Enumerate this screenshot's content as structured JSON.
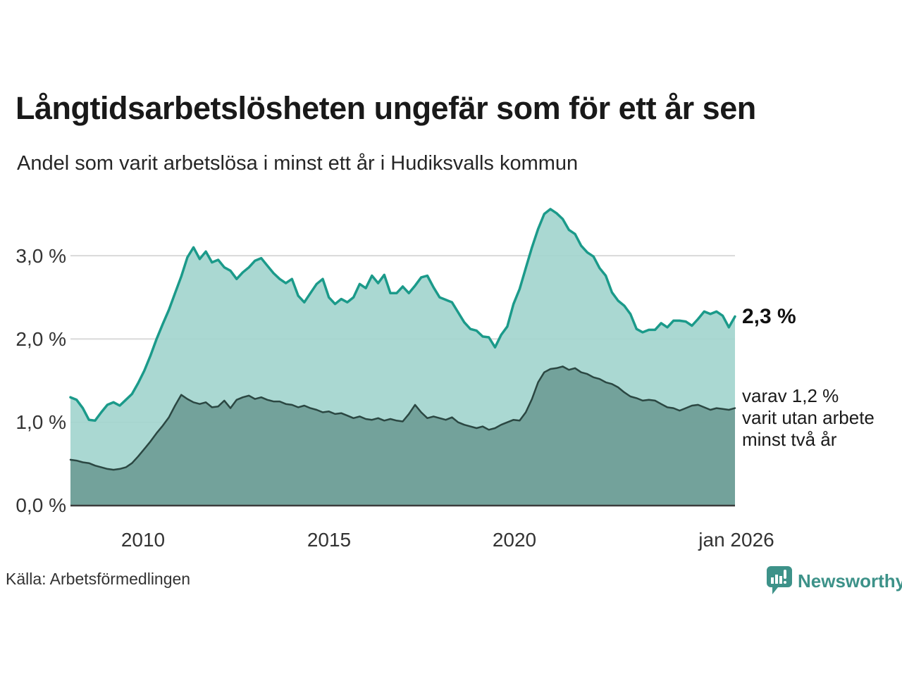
{
  "header": {
    "title": "Långtidsarbetslösheten ungefär som för ett år sen",
    "subtitle": "Andel som varit arbetslösa i minst ett år i Hudiksvalls kommun"
  },
  "annotations": {
    "latest_total": "2,3 %",
    "secondary_line1": "varav 1,2 %",
    "secondary_line2": "varit utan arbete",
    "secondary_line3": "minst två år"
  },
  "source": {
    "label": "Källa: Arbetsförmedlingen"
  },
  "brand": {
    "name": "Newsworthy",
    "icon": "newsworthy-chart-bubble-logo",
    "color": "#3d9289"
  },
  "colors": {
    "accent_teal": "#1b9a8a",
    "light_fill": "#a3d5ce",
    "dark_stroke": "#2b4742",
    "dark_fill": "#6f9d96",
    "gridline": "#d9d9d9",
    "axis_line": "#3c3c3c",
    "text": "#1a1a1a"
  },
  "chart_data": {
    "type": "area",
    "title": "Långtidsarbetslösheten ungefär som för ett år sen",
    "subtitle": "Andel som varit arbetslösa i minst ett år i Hudiksvalls kommun",
    "x_unit": "time (monthly)",
    "x_start": 2008.08,
    "x_end": 2026.0,
    "x_step_years": 0.1667,
    "ylim": [
      0,
      3.7
    ],
    "grid": "horizontal",
    "y_ticks": [
      {
        "value": 3.0,
        "label": "3,0 %"
      },
      {
        "value": 2.0,
        "label": "2,0 %"
      },
      {
        "value": 1.0,
        "label": "1,0 %"
      },
      {
        "value": 0.0,
        "label": "0,0 %"
      }
    ],
    "x_ticks": [
      {
        "value": 2010,
        "label": "2010"
      },
      {
        "value": 2015,
        "label": "2015"
      },
      {
        "value": 2020,
        "label": "2020"
      },
      {
        "value": 2026,
        "label": "jan 2026"
      }
    ],
    "series": [
      {
        "name": "Andel arbetslösa minst ett år",
        "latest_value_pct": 2.3,
        "latest_label": "2,3 %",
        "stroke": "#1b9a8a",
        "stroke_width": 3.5,
        "fill": "#a3d5ce",
        "values": [
          1.3,
          1.27,
          1.17,
          1.03,
          1.02,
          1.12,
          1.21,
          1.24,
          1.2,
          1.27,
          1.34,
          1.47,
          1.62,
          1.8,
          2.0,
          2.18,
          2.35,
          2.55,
          2.75,
          2.98,
          3.1,
          2.96,
          3.05,
          2.92,
          2.95,
          2.86,
          2.82,
          2.72,
          2.8,
          2.86,
          2.94,
          2.97,
          2.88,
          2.79,
          2.72,
          2.67,
          2.72,
          2.52,
          2.44,
          2.55,
          2.66,
          2.72,
          2.5,
          2.42,
          2.48,
          2.44,
          2.5,
          2.66,
          2.61,
          2.76,
          2.67,
          2.77,
          2.55,
          2.55,
          2.63,
          2.55,
          2.64,
          2.74,
          2.76,
          2.62,
          2.5,
          2.47,
          2.44,
          2.32,
          2.2,
          2.12,
          2.1,
          2.03,
          2.02,
          1.9,
          2.05,
          2.15,
          2.42,
          2.6,
          2.85,
          3.1,
          3.32,
          3.5,
          3.56,
          3.51,
          3.44,
          3.31,
          3.26,
          3.12,
          3.04,
          2.99,
          2.85,
          2.76,
          2.56,
          2.46,
          2.4,
          2.3,
          2.12,
          2.08,
          2.11,
          2.11,
          2.19,
          2.14,
          2.22,
          2.22,
          2.21,
          2.16,
          2.24,
          2.33,
          2.3,
          2.33,
          2.28,
          2.14,
          2.27
        ]
      },
      {
        "name": "Andel utan arbete minst två år",
        "latest_value_pct": 1.2,
        "latest_label": "varav 1,2 % varit utan arbete minst två år",
        "stroke": "#2b4742",
        "stroke_width": 2.5,
        "fill": "#6f9d96",
        "values": [
          0.55,
          0.54,
          0.52,
          0.51,
          0.48,
          0.46,
          0.44,
          0.43,
          0.44,
          0.46,
          0.51,
          0.59,
          0.68,
          0.77,
          0.87,
          0.96,
          1.06,
          1.2,
          1.33,
          1.28,
          1.24,
          1.22,
          1.24,
          1.18,
          1.19,
          1.26,
          1.17,
          1.27,
          1.3,
          1.32,
          1.28,
          1.3,
          1.27,
          1.25,
          1.25,
          1.22,
          1.21,
          1.18,
          1.2,
          1.17,
          1.15,
          1.12,
          1.13,
          1.1,
          1.11,
          1.08,
          1.05,
          1.07,
          1.04,
          1.03,
          1.05,
          1.02,
          1.04,
          1.02,
          1.01,
          1.1,
          1.21,
          1.12,
          1.05,
          1.07,
          1.05,
          1.03,
          1.06,
          1.0,
          0.97,
          0.95,
          0.93,
          0.95,
          0.91,
          0.93,
          0.97,
          1.0,
          1.03,
          1.02,
          1.12,
          1.28,
          1.48,
          1.6,
          1.64,
          1.65,
          1.67,
          1.63,
          1.65,
          1.6,
          1.58,
          1.54,
          1.52,
          1.48,
          1.46,
          1.42,
          1.36,
          1.31,
          1.29,
          1.26,
          1.27,
          1.26,
          1.22,
          1.18,
          1.17,
          1.14,
          1.17,
          1.2,
          1.21,
          1.18,
          1.15,
          1.17,
          1.16,
          1.15,
          1.17
        ]
      }
    ]
  }
}
